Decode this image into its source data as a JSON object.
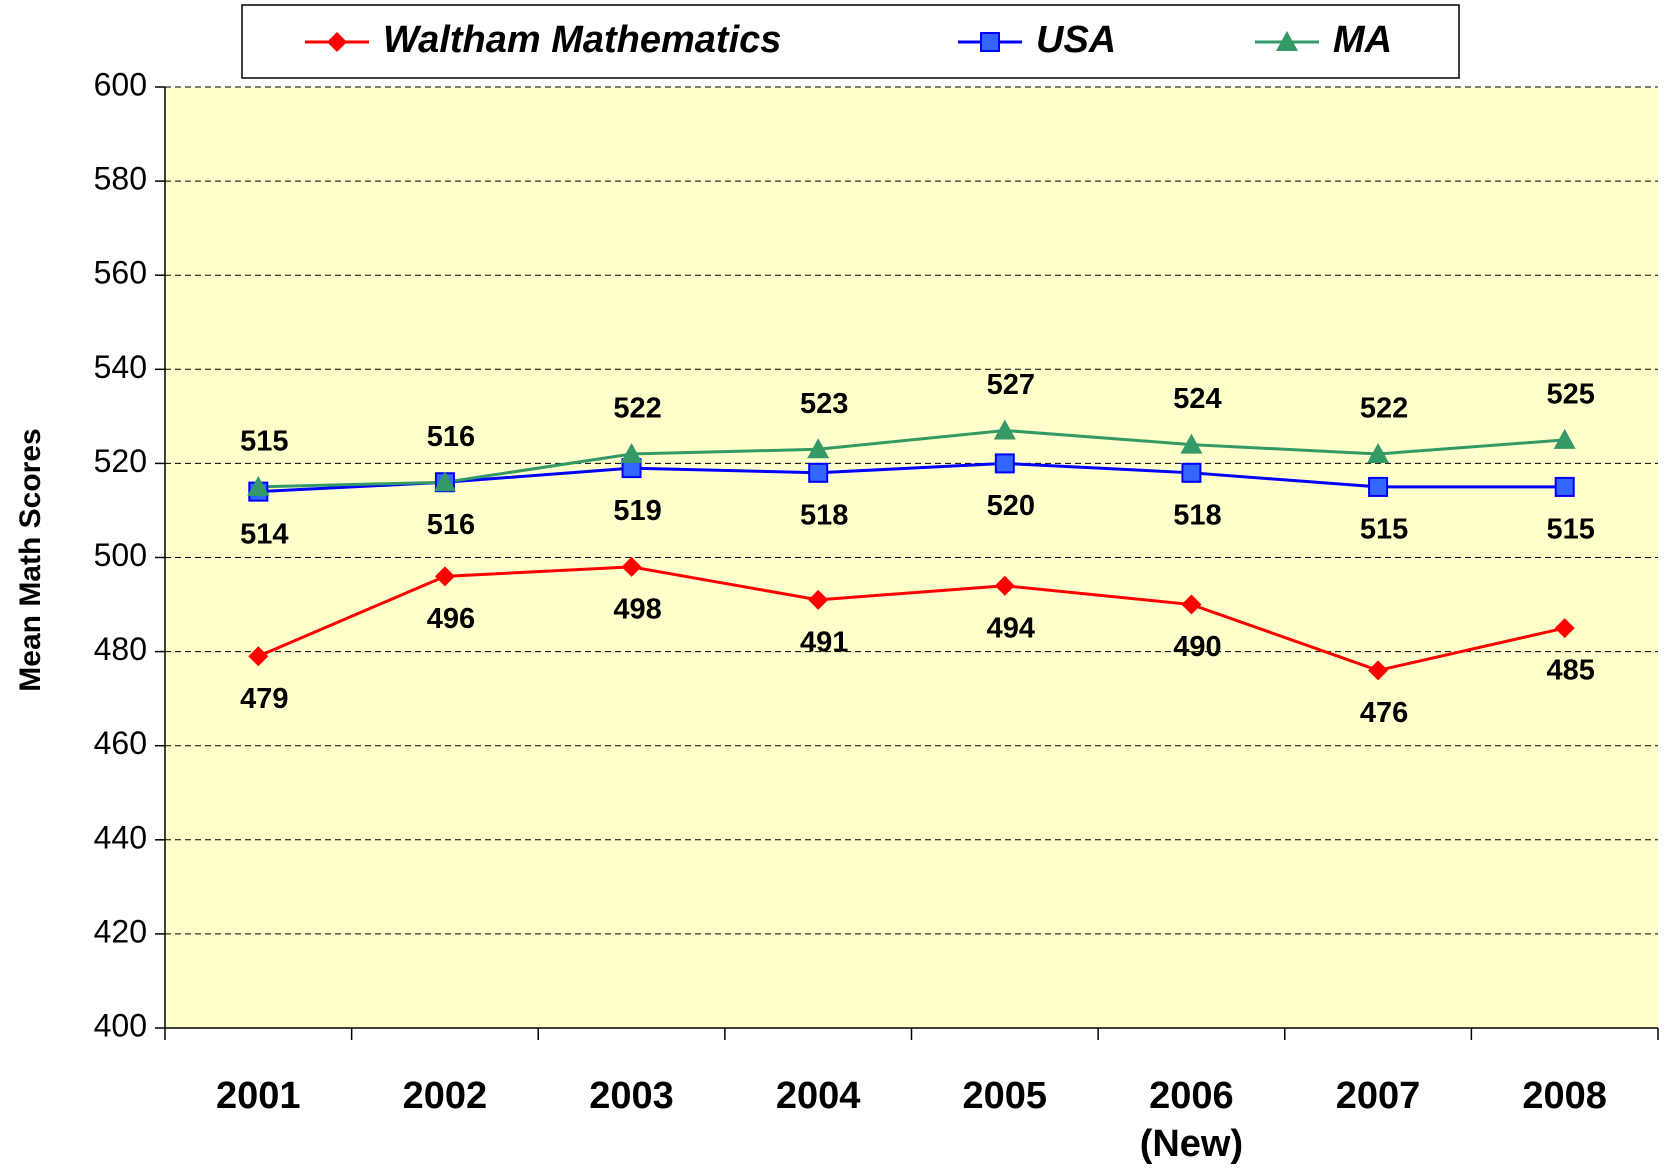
{
  "chart_data": {
    "type": "line",
    "y_label": "Mean Math Scores",
    "categories": [
      "2001",
      "2002",
      "2003",
      "2004",
      "2005",
      "2006 (New)",
      "2007",
      "2008"
    ],
    "series": [
      {
        "name": "Waltham Mathematics",
        "color": "#ff0000",
        "marker": "diamond",
        "values": [
          479,
          496,
          498,
          491,
          494,
          490,
          476,
          485
        ]
      },
      {
        "name": "USA",
        "color": "#0000ff",
        "marker": "square",
        "values": [
          514,
          516,
          519,
          518,
          520,
          518,
          515,
          515
        ]
      },
      {
        "name": "MA",
        "color": "#339966",
        "marker": "triangle",
        "values": [
          515,
          516,
          522,
          523,
          527,
          524,
          522,
          525
        ]
      }
    ],
    "ylim": [
      400,
      600
    ],
    "yticks": [
      400,
      420,
      440,
      460,
      480,
      500,
      520,
      540,
      560,
      580,
      600
    ],
    "grid": true,
    "legend": "top",
    "background": "#ffffcc"
  }
}
